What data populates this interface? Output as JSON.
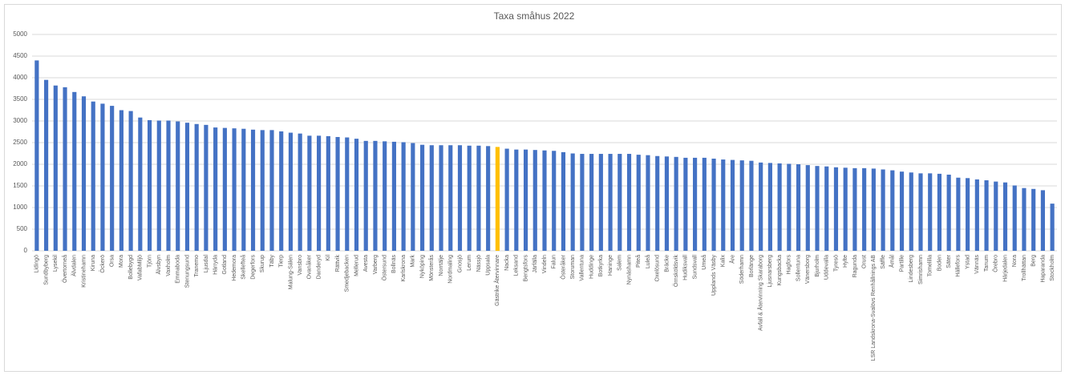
{
  "chart_data": {
    "type": "bar",
    "title": "Taxa småhus 2022",
    "categories": [
      "Lidingö",
      "Sundbyberg",
      "Lysekil",
      "Övertorneå",
      "Älvdalen",
      "Kristinehamn",
      "Kiruna",
      "Öckerö",
      "Orsa",
      "Mora",
      "Bollebygd",
      "VafabMiljö",
      "Tjörn",
      "Älvsbyn",
      "Vaxholm",
      "Emmaboda",
      "Stenungsund",
      "Tranemo",
      "Ljusdal",
      "Härryda",
      "Gotland",
      "Hedemora",
      "Skellefteå",
      "Degerfors",
      "Skurup",
      "Täby",
      "Tierp",
      "Malung-Sälen",
      "Vansbro",
      "Ovanåker",
      "Danderyd",
      "Kil",
      "Rättvik",
      "Smedjebacken",
      "Mellerud",
      "Avesta",
      "Varberg",
      "Östersund",
      "Bollnäs",
      "Karlskrona",
      "Mark",
      "Nyköping",
      "Mönsterås",
      "Norrtälje",
      "Nordmaling",
      "Gnosjö",
      "Lerum",
      "Nässjö",
      "Uppsala",
      "Gästrike Återvinnare",
      "Nacka",
      "Leksand",
      "Bengtsfors",
      "Järfälla",
      "Vindeln",
      "Falun",
      "Österåker",
      "Storuman",
      "Vallentuna",
      "Huddinge",
      "Botkyrka",
      "Haninge",
      "Salem",
      "Nynäshamn",
      "Piteå",
      "Luleå",
      "Oxelösund",
      "Bräcke",
      "Örnsköldsvik",
      "Hudiksvall",
      "Sundsvall",
      "Umeå",
      "Upplands Väsby",
      "Kalix",
      "Åre",
      "Söderhamn",
      "Borlänge",
      "Avfall & Återvinning Skaraborg",
      "Ljusnarsberg",
      "Kungsbacka",
      "Hagfors",
      "Sollentuna",
      "Vänersborg",
      "Bjurholm",
      "Uddevalla",
      "Tyresö",
      "Hylte",
      "Ragunda",
      "Orust",
      "LSR Landskrona-Svalövs Renhållnings AB",
      "Säffle",
      "Åmål",
      "Partille",
      "Lindesberg",
      "Simrishamn",
      "Tomelilla",
      "Boden",
      "Säter",
      "Hällefors",
      "Ystad",
      "Vännäs",
      "Tanum",
      "Örebro",
      "Härjedalen",
      "Nora",
      "Trollhättan",
      "Berg",
      "Haparanda",
      "Stockholm"
    ],
    "values": [
      4400,
      3950,
      3820,
      3780,
      3670,
      3570,
      3450,
      3400,
      3350,
      3250,
      3230,
      3080,
      3020,
      3010,
      3010,
      2990,
      2960,
      2930,
      2910,
      2850,
      2840,
      2830,
      2820,
      2800,
      2790,
      2790,
      2760,
      2730,
      2710,
      2660,
      2660,
      2650,
      2630,
      2620,
      2590,
      2540,
      2540,
      2530,
      2520,
      2510,
      2490,
      2450,
      2440,
      2440,
      2440,
      2440,
      2430,
      2430,
      2420,
      2400,
      2360,
      2340,
      2340,
      2330,
      2320,
      2310,
      2280,
      2250,
      2240,
      2240,
      2240,
      2240,
      2240,
      2240,
      2220,
      2210,
      2190,
      2180,
      2170,
      2150,
      2150,
      2150,
      2130,
      2110,
      2100,
      2090,
      2080,
      2040,
      2030,
      2020,
      2010,
      2000,
      1980,
      1960,
      1950,
      1930,
      1920,
      1910,
      1910,
      1900,
      1880,
      1860,
      1830,
      1810,
      1790,
      1790,
      1780,
      1760,
      1690,
      1680,
      1650,
      1630,
      1600,
      1580,
      1510,
      1450,
      1430,
      1400,
      1090
    ],
    "color": "#4472c4",
    "highlight_color": "#ffc000",
    "highlight_categories": [
      "Gästrike Återvinnare"
    ],
    "ylim": [
      0,
      5000
    ],
    "yticks": [
      0,
      500,
      1000,
      1500,
      2000,
      2500,
      3000,
      3500,
      4000,
      4500,
      5000
    ],
    "grid": true
  }
}
